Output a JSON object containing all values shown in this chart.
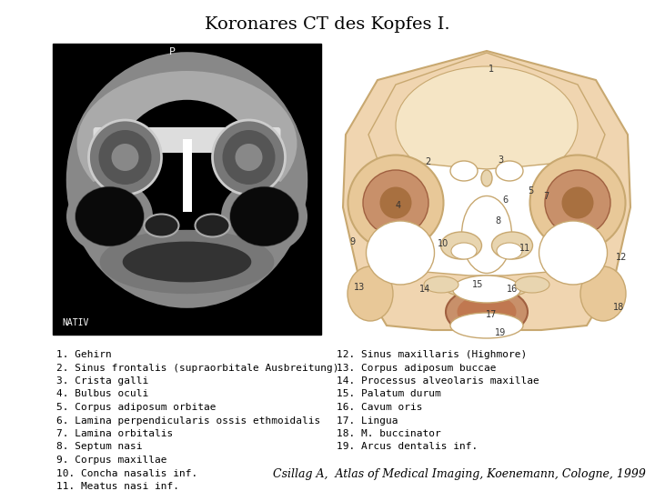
{
  "title": "Koronares CT des Kopfes I.",
  "title_fontsize": 14,
  "background_color": "#ffffff",
  "left_col": [
    "1. Gehirn",
    "2. Sinus frontalis (supraorbitale Ausbreitung)",
    "3. Crista galli",
    "4. Bulbus oculi",
    "5. Corpus adiposum orbitae",
    "6. Lamina perpendicularis ossis ethmoidalis",
    "7. Lamina orbitalis",
    "8. Septum nasi",
    "9. Corpus maxillae",
    "10. Concha nasalis inf.",
    "11. Meatus nasi inf."
  ],
  "right_col": [
    "12. Sinus maxillaris (Highmore)",
    "13. Corpus adiposum buccae",
    "14. Processus alveolaris maxillae",
    "15. Palatum durum",
    "16. Cavum oris",
    "17. Lingua",
    "18. M. buccinator",
    "19. Arcus dentalis inf."
  ],
  "citation": "Csillag A,  Atlas of Medical Imaging, Koenemann, Cologne, 1999",
  "text_fontsize": 8,
  "citation_fontsize": 9
}
